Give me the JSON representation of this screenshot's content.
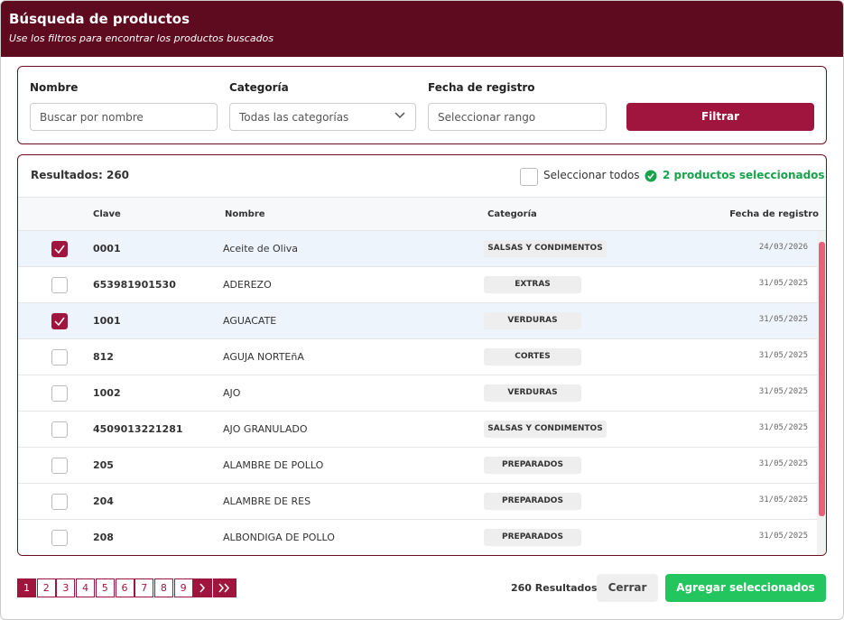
{
  "header": {
    "title": "Búsqueda de productos",
    "subtitle": "Use los filtros para encontrar los productos buscados"
  },
  "filters": {
    "name_label": "Nombre",
    "name_placeholder": "Buscar por nombre",
    "category_label": "Categoría",
    "category_value": "Todas las categorías",
    "date_label": "Fecha de registro",
    "date_placeholder": "Seleccionar rango",
    "button": "Filtrar"
  },
  "results": {
    "count_label": "Resultados: 260",
    "select_all": "Seleccionar todos",
    "selected": "2 productos seleccionados"
  },
  "table": {
    "columns": [
      "Clave",
      "Nombre",
      "Categoría",
      "Fecha de registro"
    ],
    "rows": [
      [
        "0001",
        "Aceite de Oliva",
        "SALSAS Y CONDIMENTOS",
        "24/03/2026"
      ],
      [
        "653981901530",
        "ADEREZO",
        "EXTRAS",
        "31/05/2025"
      ],
      [
        "1001",
        "AGUACATE",
        "VERDURAS",
        "31/05/2025"
      ],
      [
        "812",
        "AGUJA NORTEñA",
        "CORTES",
        "31/05/2025"
      ],
      [
        "1002",
        "AJO",
        "VERDURAS",
        "31/05/2025"
      ],
      [
        "4509013221281",
        "AJO GRANULADO",
        "SALSAS Y CONDIMENTOS",
        "31/05/2025"
      ],
      [
        "205",
        "ALAMBRE DE POLLO",
        "PREPARADOS",
        "31/05/2025"
      ],
      [
        "204",
        "ALAMBRE DE RES",
        "PREPARADOS",
        "31/05/2025"
      ],
      [
        "208",
        "ALBONDIGA DE POLLO",
        "PREPARADOS",
        "31/05/2025"
      ]
    ],
    "checked": [
      true,
      false,
      true,
      false,
      false,
      false,
      false,
      false,
      false
    ]
  },
  "footer": {
    "pages": [
      1,
      2,
      3,
      4,
      5,
      6,
      7,
      8,
      9
    ],
    "total": "260 Resultados",
    "close": "Cerrar",
    "add": "Agregar seleccionados"
  }
}
